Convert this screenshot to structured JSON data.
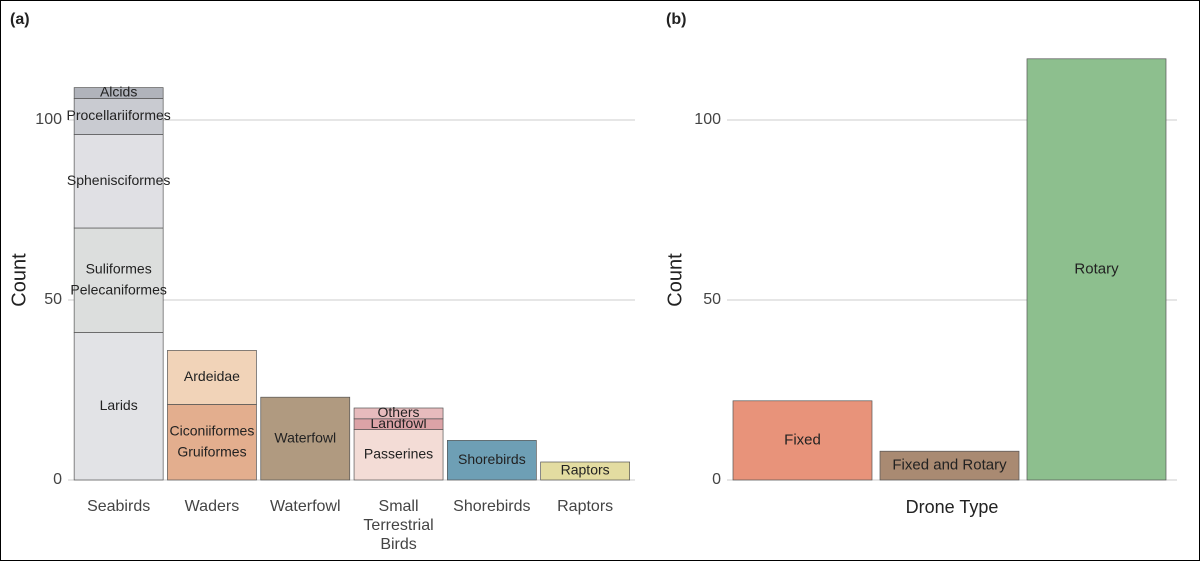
{
  "chart_data": [
    {
      "type": "stacked_bar",
      "panel_label": "(a)",
      "y_label": "Count",
      "categories": [
        "Seabirds",
        "Waders",
        "Waterfowl",
        "Small Terrestrial Birds",
        "Shorebirds",
        "Raptors"
      ],
      "stacks": [
        [
          {
            "labels": [
              "Larids"
            ],
            "value": 41,
            "color": "#e2e3e6"
          },
          {
            "labels": [
              "Suliformes",
              "Pelecaniformes"
            ],
            "value": 29,
            "color": "#dcdedd"
          },
          {
            "labels": [
              "Sphenisciformes"
            ],
            "value": 26,
            "color": "#e0e0e4"
          },
          {
            "labels": [
              "Procellariiformes"
            ],
            "value": 10,
            "color": "#c9cbd1"
          },
          {
            "labels": [
              "Alcids"
            ],
            "value": 3,
            "color": "#b0b3bb"
          }
        ],
        [
          {
            "labels": [
              "Ciconiiformes",
              "Gruiformes"
            ],
            "value": 21,
            "color": "#e3ae8e"
          },
          {
            "labels": [
              "Ardeidae"
            ],
            "value": 15,
            "color": "#f1d3b8"
          }
        ],
        [
          {
            "labels": [
              "Waterfowl"
            ],
            "value": 23,
            "color": "#b09a80"
          }
        ],
        [
          {
            "labels": [
              "Passerines"
            ],
            "value": 14,
            "color": "#f3dcd6"
          },
          {
            "labels": [
              "Landfowl"
            ],
            "value": 3,
            "color": "#dca3a7"
          },
          {
            "labels": [
              "Others"
            ],
            "value": 3,
            "color": "#e7bbbd"
          }
        ],
        [
          {
            "labels": [
              "Shorebirds"
            ],
            "value": 11,
            "color": "#6e9fb5"
          }
        ],
        [
          {
            "labels": [
              "Raptors"
            ],
            "value": 5,
            "color": "#e3dca1"
          }
        ]
      ],
      "ylim": [
        0,
        125
      ],
      "yticks": [
        0,
        50,
        100
      ],
      "grid": true
    },
    {
      "type": "bar",
      "panel_label": "(b)",
      "y_label": "Count",
      "x_label": "Drone Type",
      "categories": [
        "Fixed",
        "Fixed and Rotary",
        "Rotary"
      ],
      "values": [
        22,
        8,
        117
      ],
      "colors": [
        "#e8937a",
        "#a98a72",
        "#8dbf8e"
      ],
      "ylim": [
        0,
        125
      ],
      "yticks": [
        0,
        50,
        100
      ],
      "grid": true
    }
  ]
}
